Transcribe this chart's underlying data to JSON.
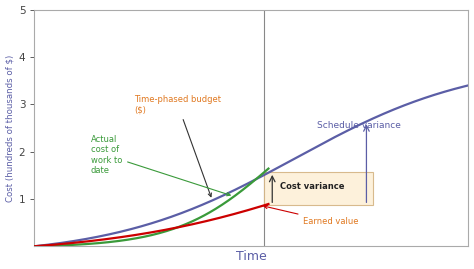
{
  "background_color": "#ffffff",
  "plot_bg_color": "#ffffff",
  "xlabel": "Time",
  "ylabel": "Cost (hundreds of thousands of $)",
  "ylim": [
    0,
    5
  ],
  "xlim": [
    0,
    10
  ],
  "yticks": [
    1,
    2,
    3,
    4,
    5
  ],
  "time_phased_color": "#5b5ea6",
  "time_phased_label_color": "#e07820",
  "actual_cost_color": "#3a9a3a",
  "earned_value_color": "#cc0000",
  "schedule_variance_color": "#5b5ea6",
  "vertical_line_x": 5.3,
  "annotation_box_color": "#fdf0d8",
  "annotation_box_edge": "#d4b483",
  "cost_variance_arrow_color": "#333333",
  "schedule_variance_arrow_color": "#5b5ea6",
  "border_color": "#aaaaaa",
  "labels": {
    "time_phased_line": "Time-phased budget\n($)",
    "actual_cost": "Actual\ncost of\nwork to\ndate",
    "earned_value": "Earned value",
    "schedule_variance": "Schedule variance",
    "cost_variance": "Cost variance"
  },
  "curve_params": {
    "budget_L": 4.15,
    "budget_k": 0.48,
    "budget_x0": 6.0,
    "actual_L": 3.5,
    "actual_k": 0.9,
    "actual_x0": 5.5,
    "earned_L": 3.5,
    "earned_k": 0.38,
    "earned_x0": 7.5
  }
}
